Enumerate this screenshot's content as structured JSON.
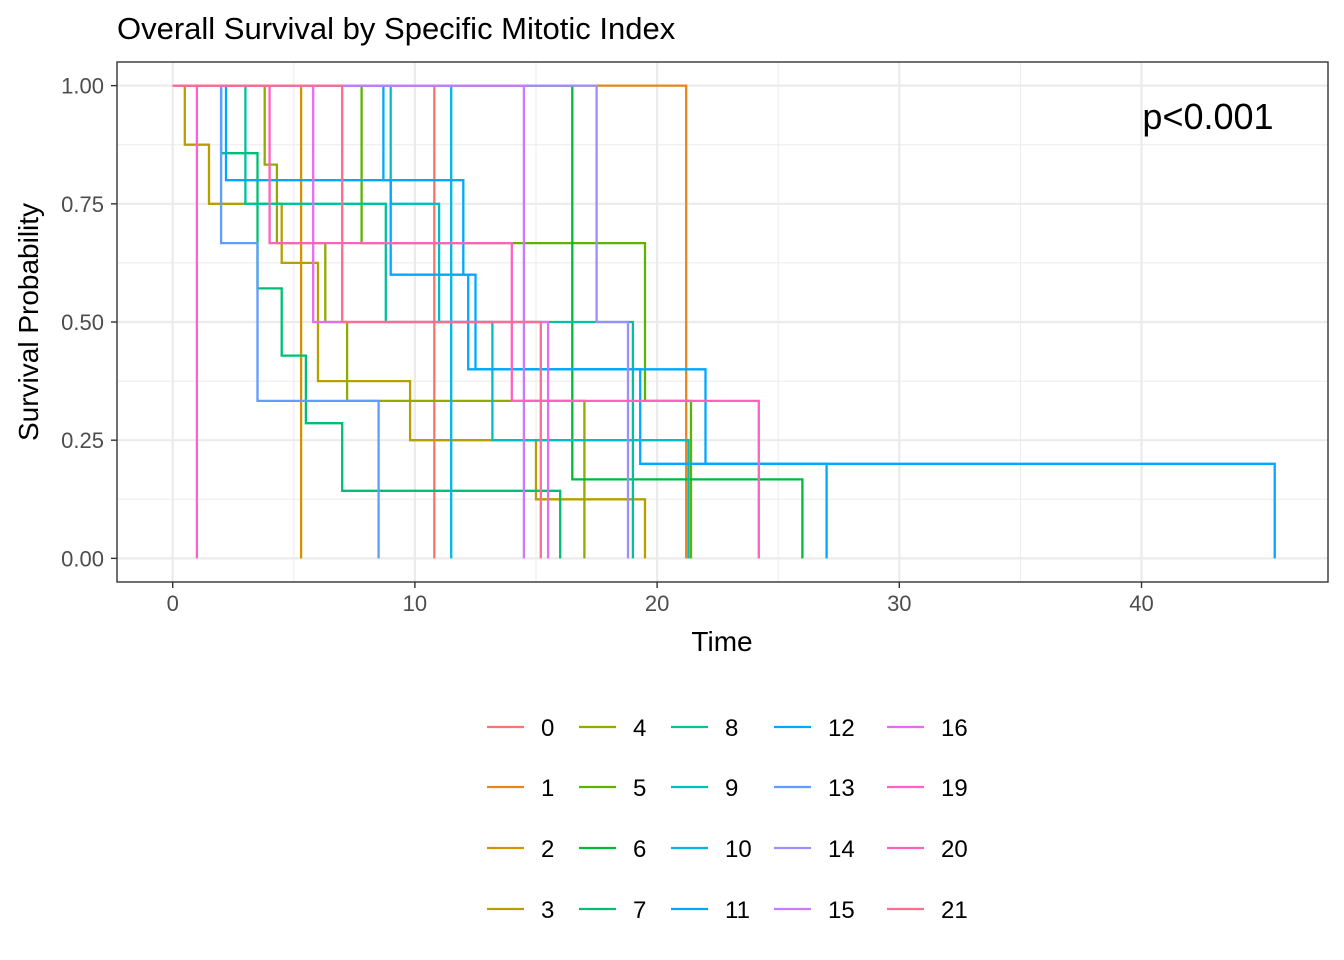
{
  "chart_data": {
    "type": "line",
    "subtype": "kaplan-meier step",
    "title": "Overall Survival by Specific Mitotic Index",
    "xlabel": "Time",
    "ylabel": "Survival Probability",
    "xlim": [
      -2.3,
      47.7
    ],
    "ylim": [
      -0.05,
      1.05
    ],
    "x_ticks": [
      0,
      10,
      20,
      30,
      40
    ],
    "y_ticks": [
      0,
      0.25,
      0.5,
      0.75,
      1.0
    ],
    "y_tick_labels": [
      "0.00",
      "0.25",
      "0.50",
      "0.75",
      "1.00"
    ],
    "grid": true,
    "annotation": "p<0.001",
    "legend_position": "bottom",
    "series": [
      {
        "name": "0",
        "color": "#F8766D",
        "x": [
          0,
          10.8,
          10.8
        ],
        "y": [
          1,
          1,
          0
        ]
      },
      {
        "name": "1",
        "color": "#E7861B",
        "x": [
          0,
          21.2,
          21.2
        ],
        "y": [
          1,
          1,
          0
        ]
      },
      {
        "name": "2",
        "color": "#D39200",
        "x": [
          0,
          5.3,
          5.3
        ],
        "y": [
          1,
          1,
          0
        ]
      },
      {
        "name": "3",
        "color": "#B79F00",
        "x": [
          0,
          0.5,
          0.5,
          1.5,
          1.5,
          3.8,
          3.8,
          4.5,
          4.5,
          6.0,
          6.0,
          9.8,
          9.8,
          15.0,
          15.0,
          19.5,
          19.5
        ],
        "y": [
          1,
          1,
          0.875,
          0.875,
          0.75,
          0.75,
          0.75,
          0.75,
          0.625,
          0.625,
          0.375,
          0.375,
          0.25,
          0.25,
          0.125,
          0.125,
          0
        ]
      },
      {
        "name": "4",
        "color": "#93AA00",
        "x": [
          0,
          3.8,
          3.8,
          4.3,
          4.3,
          6.3,
          6.3,
          7.2,
          7.2,
          11.0,
          11.0,
          16.4,
          16.4,
          17.0,
          17.0
        ],
        "y": [
          1,
          1,
          0.833,
          0.833,
          0.667,
          0.667,
          0.5,
          0.5,
          0.333,
          0.333,
          0.333,
          0.333,
          0.333,
          0.333,
          0
        ]
      },
      {
        "name": "5",
        "color": "#5EB300",
        "x": [
          0,
          7.8,
          7.8,
          19.5,
          19.5,
          21.4,
          21.4
        ],
        "y": [
          1,
          1,
          0.667,
          0.667,
          0.333,
          0.333,
          0
        ]
      },
      {
        "name": "6",
        "color": "#00BA38",
        "x": [
          0,
          16.5,
          16.5,
          26.0,
          26.0
        ],
        "y": [
          1,
          1,
          0.167,
          0.167,
          0
        ]
      },
      {
        "name": "7",
        "color": "#00BF74",
        "x": [
          0,
          2.0,
          2.0,
          3.5,
          3.5,
          4.5,
          4.5,
          5.5,
          5.5,
          7.0,
          7.0,
          16.0,
          16.0
        ],
        "y": [
          1,
          1,
          0.857,
          0.857,
          0.571,
          0.571,
          0.429,
          0.429,
          0.286,
          0.286,
          0.143,
          0.143,
          0
        ]
      },
      {
        "name": "8",
        "color": "#00C19F",
        "x": [
          0,
          3.0,
          3.0,
          8.8,
          8.8,
          19.0,
          19.0
        ],
        "y": [
          1,
          1,
          0.75,
          0.75,
          0.5,
          0.5,
          0
        ]
      },
      {
        "name": "9",
        "color": "#00BFC4",
        "x": [
          0,
          9.0,
          9.0,
          11.0,
          11.0,
          13.2,
          13.2,
          21.3,
          21.3
        ],
        "y": [
          1,
          1,
          0.75,
          0.75,
          0.5,
          0.5,
          0.25,
          0.25,
          0
        ]
      },
      {
        "name": "10",
        "color": "#00B8E7",
        "x": [
          0,
          11.5,
          11.5
        ],
        "y": [
          1,
          1,
          0
        ]
      },
      {
        "name": "11",
        "color": "#00A9FF",
        "x": [
          0,
          2.2,
          2.2,
          12.0,
          12.0,
          12.5,
          12.5,
          22.0,
          22.0,
          27.0,
          27.0
        ],
        "y": [
          1,
          1,
          0.8,
          0.8,
          0.6,
          0.6,
          0.4,
          0.4,
          0.2,
          0.2,
          0
        ]
      },
      {
        "name": "12",
        "color": "#00A9FF",
        "x": [
          0,
          8.7,
          8.7,
          9.0,
          9.0,
          12.2,
          12.2,
          19.3,
          19.3,
          45.5,
          45.5
        ],
        "y": [
          1,
          1,
          0.8,
          0.8,
          0.6,
          0.6,
          0.4,
          0.4,
          0.2,
          0.2,
          0
        ]
      },
      {
        "name": "13",
        "color": "#619CFF",
        "x": [
          0,
          2.0,
          2.0,
          3.5,
          3.5,
          8.5,
          8.5
        ],
        "y": [
          1,
          1,
          0.667,
          0.667,
          0.333,
          0.333,
          0
        ]
      },
      {
        "name": "14",
        "color": "#9F8CFF",
        "x": [
          0,
          17.5,
          17.5,
          18.8,
          18.8
        ],
        "y": [
          1,
          1,
          0.5,
          0.5,
          0
        ]
      },
      {
        "name": "15",
        "color": "#C77CFF",
        "x": [
          0,
          14.5,
          14.5
        ],
        "y": [
          1,
          1,
          0
        ]
      },
      {
        "name": "16",
        "color": "#E76BF3",
        "x": [
          0,
          5.8,
          5.8,
          15.5,
          15.5
        ],
        "y": [
          1,
          1,
          0.5,
          0.5,
          0
        ]
      },
      {
        "name": "19",
        "color": "#FF61C9",
        "x": [
          0,
          1.0,
          1.0
        ],
        "y": [
          1,
          1,
          0
        ]
      },
      {
        "name": "20",
        "color": "#FF62BC",
        "x": [
          0,
          4.0,
          4.0,
          14.0,
          14.0,
          24.2,
          24.2
        ],
        "y": [
          1,
          1,
          0.667,
          0.667,
          0.333,
          0.333,
          0
        ]
      },
      {
        "name": "21",
        "color": "#FF6C91",
        "x": [
          0,
          7.0,
          7.0,
          15.2,
          15.2
        ],
        "y": [
          1,
          1,
          0.5,
          0.5,
          0
        ]
      }
    ]
  }
}
